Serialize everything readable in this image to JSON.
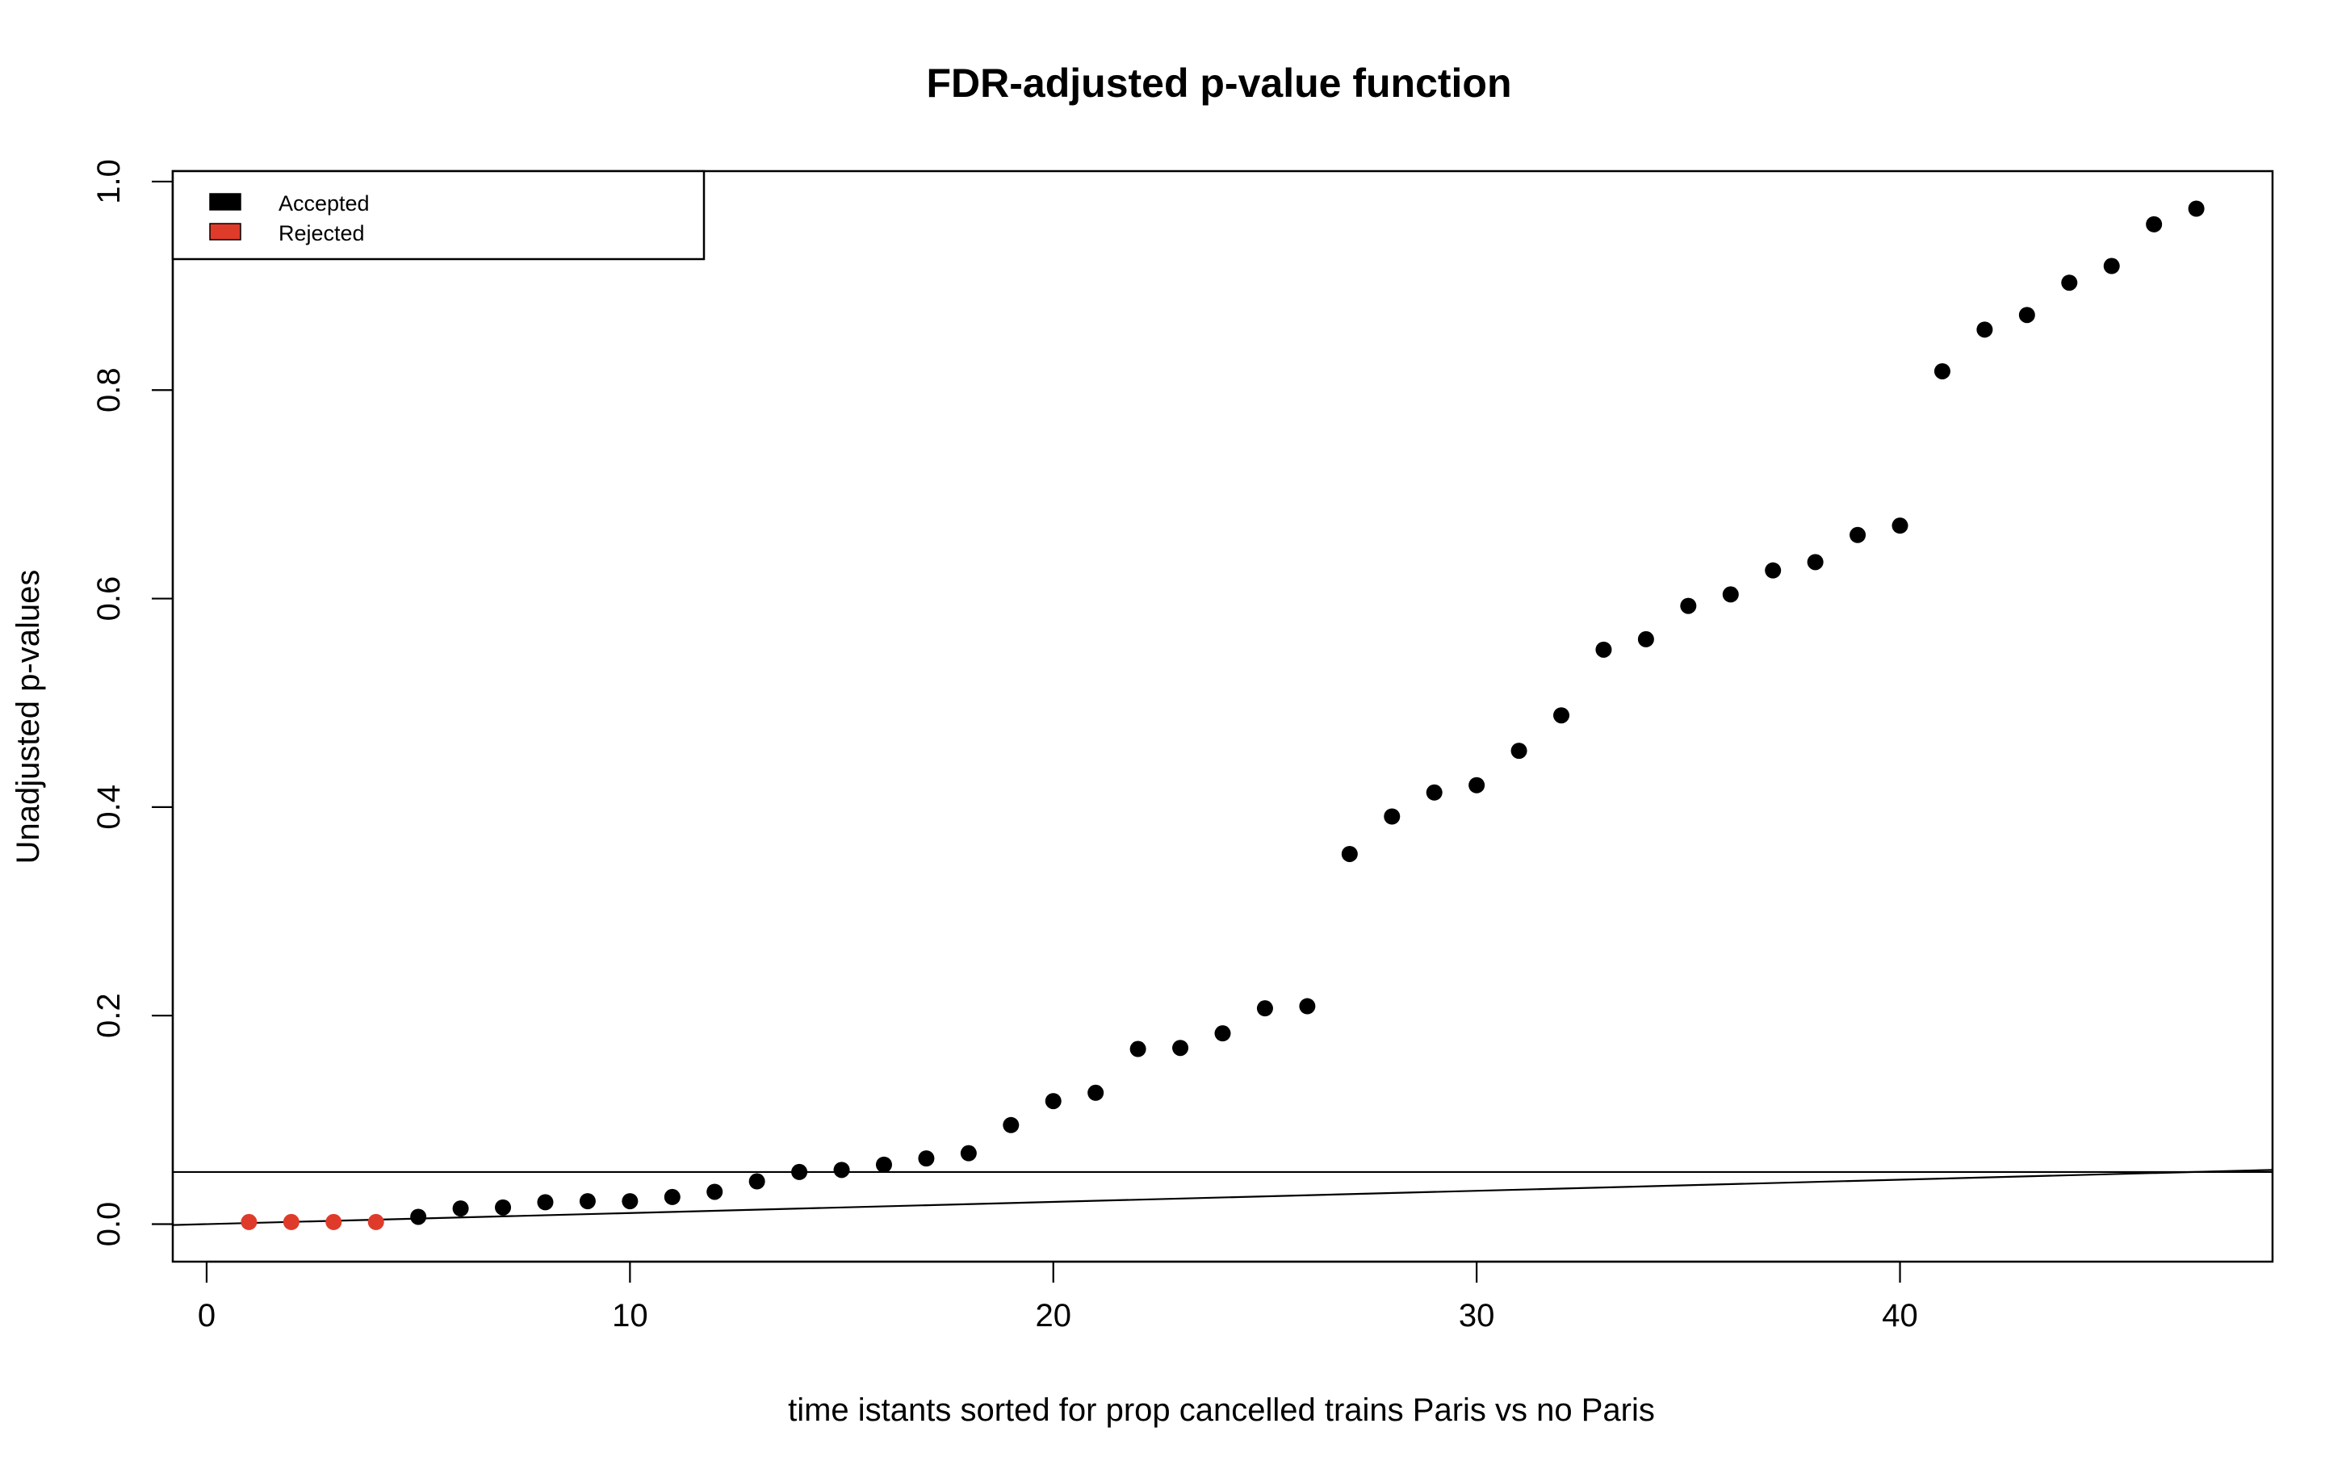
{
  "chart_data": {
    "type": "scatter",
    "title": "FDR-adjusted p-value function",
    "xlabel": "time istants sorted for prop cancelled trains Paris vs no Paris",
    "ylabel": "Unadjusted p-values",
    "xlim": [
      -0.8,
      48.8
    ],
    "ylim": [
      -0.036,
      1.01
    ],
    "x_ticks": [
      0,
      10,
      20,
      30,
      40
    ],
    "y_ticks": [
      0.0,
      0.2,
      0.4,
      0.6,
      0.8,
      1.0
    ],
    "x_tick_labels": [
      "0",
      "10",
      "20",
      "30",
      "40"
    ],
    "y_tick_labels": [
      "0.0",
      "0.2",
      "0.4",
      "0.6",
      "0.8",
      "1.0"
    ],
    "grid": false,
    "legend": {
      "position": "top-left",
      "entries": [
        {
          "label": "Accepted",
          "color": "#000000"
        },
        {
          "label": "Rejected",
          "color": "#df3b2b"
        }
      ]
    },
    "reference_lines": [
      {
        "kind": "horizontal",
        "y": 0.05
      },
      {
        "kind": "line",
        "from": [
          -0.8,
          -0.00085
        ],
        "to": [
          48.8,
          0.052
        ]
      }
    ],
    "series": [
      {
        "name": "Rejected",
        "color": "#df3b2b",
        "x": [
          1,
          2,
          3,
          4
        ],
        "y": [
          0.002,
          0.002,
          0.002,
          0.002
        ]
      },
      {
        "name": "Accepted",
        "color": "#000000",
        "x": [
          5,
          6,
          7,
          8,
          9,
          10,
          11,
          12,
          13,
          14,
          15,
          16,
          17,
          18,
          19,
          20,
          21,
          22,
          23,
          24,
          25,
          26,
          27,
          28,
          29,
          30,
          31,
          32,
          33,
          34,
          35,
          36,
          37,
          38,
          39,
          40,
          41,
          42,
          43,
          44,
          45,
          46,
          47
        ],
        "y": [
          0.007,
          0.015,
          0.016,
          0.021,
          0.022,
          0.022,
          0.026,
          0.031,
          0.041,
          0.05,
          0.052,
          0.057,
          0.063,
          0.068,
          0.095,
          0.118,
          0.126,
          0.168,
          0.169,
          0.183,
          0.207,
          0.209,
          0.355,
          0.391,
          0.414,
          0.421,
          0.454,
          0.488,
          0.551,
          0.561,
          0.593,
          0.604,
          0.627,
          0.635,
          0.661,
          0.67,
          0.818,
          0.858,
          0.872,
          0.903,
          0.919,
          0.959,
          0.974
        ]
      }
    ]
  }
}
